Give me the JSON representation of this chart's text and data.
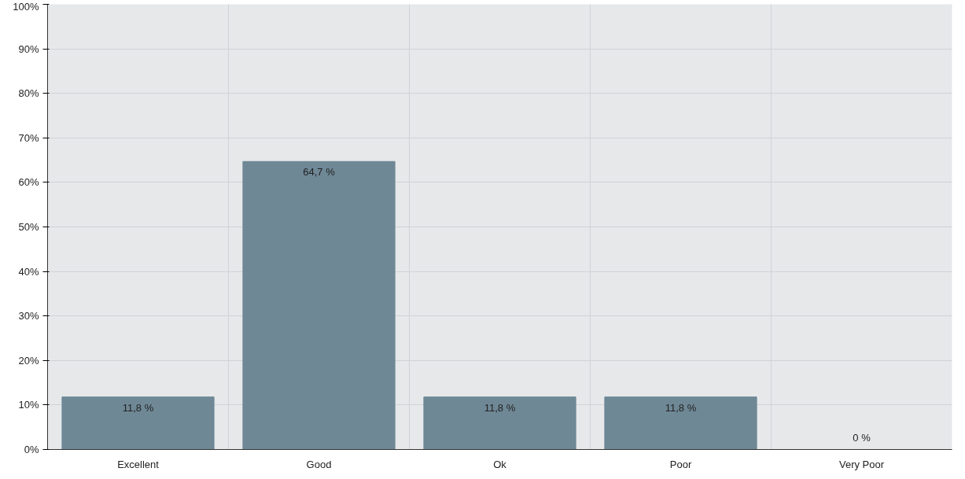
{
  "chart_data": {
    "type": "bar",
    "categories": [
      "Excellent",
      "Good",
      "Ok",
      "Poor",
      "Very Poor"
    ],
    "values": [
      11.8,
      64.7,
      11.8,
      11.8,
      0
    ],
    "value_labels": [
      "11,8 %",
      "64,7 %",
      "11,8 %",
      "11,8 %",
      "0 %"
    ],
    "color": "#6f8896",
    "ylim": [
      0,
      100
    ],
    "yticks": [
      {
        "value": 0,
        "label": "0%"
      },
      {
        "value": 10,
        "label": "10%"
      },
      {
        "value": 20,
        "label": "20%"
      },
      {
        "value": 30,
        "label": "30%"
      },
      {
        "value": 40,
        "label": "40%"
      },
      {
        "value": 50,
        "label": "50%"
      },
      {
        "value": 60,
        "label": "60%"
      },
      {
        "value": 70,
        "label": "70%"
      },
      {
        "value": 80,
        "label": "80%"
      },
      {
        "value": 90,
        "label": "90%"
      },
      {
        "value": 100,
        "label": "100%"
      }
    ],
    "grid": true
  }
}
